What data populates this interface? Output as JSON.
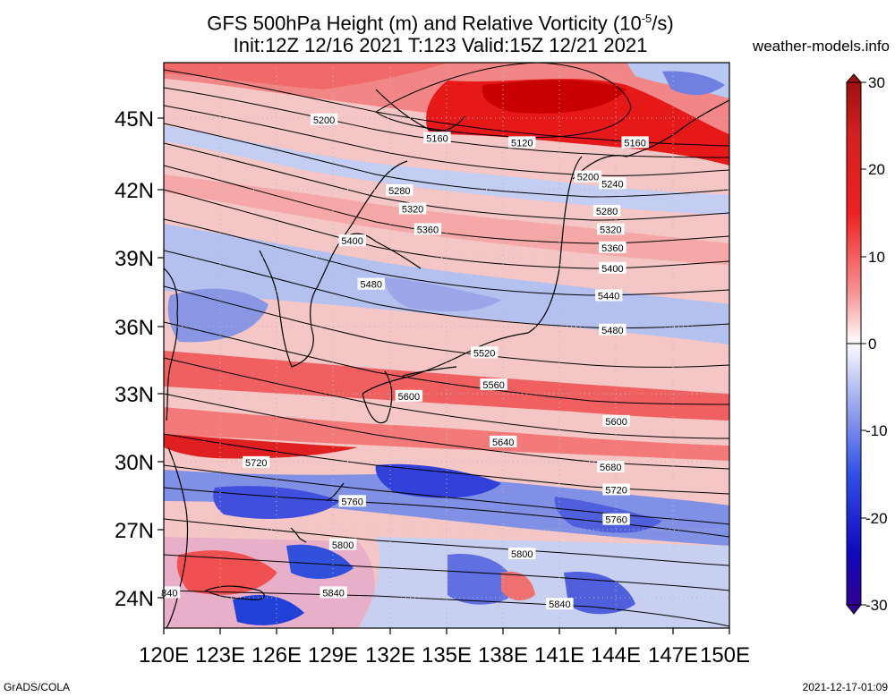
{
  "title_line1": "GFS 500hPa Height (m) and Relative Vorticity (10",
  "title_sup": "-5",
  "title_tail": "/s)",
  "title_line2": "Init:12Z 12/16 2021 T:123 Valid:15Z 12/21 2021",
  "site": "weather-models.info",
  "footer_left": "GrADS/COLA",
  "footer_right": "2021-12-17-01:09",
  "lat_labels": [
    "45N",
    "42N",
    "39N",
    "36N",
    "33N",
    "30N",
    "27N",
    "24N"
  ],
  "lon_labels": [
    "120E",
    "123E",
    "126E",
    "129E",
    "132E",
    "135E",
    "138E",
    "141E",
    "144E",
    "147E",
    "150E"
  ],
  "colorbar_labels": [
    "30",
    "20",
    "10",
    "0",
    "-10",
    "-20",
    "-30"
  ],
  "colors": {
    "strong_pos": "#d40000",
    "pos": "#f06060",
    "weak_pos": "#f8b8b8",
    "neutral": "#ffffff",
    "weak_neg": "#b8c4f0",
    "neg": "#5870e0",
    "strong_neg": "#1010c8",
    "contour": "#000000"
  },
  "contour_labels": [
    {
      "text": "5200",
      "lon": 128.5,
      "lat": 45.0
    },
    {
      "text": "5160",
      "lon": 134.5,
      "lat": 44.2
    },
    {
      "text": "5120",
      "lon": 139.0,
      "lat": 44.0
    },
    {
      "text": "5160",
      "lon": 145.0,
      "lat": 44.0
    },
    {
      "text": "5280",
      "lon": 132.5,
      "lat": 41.9
    },
    {
      "text": "5200",
      "lon": 142.5,
      "lat": 42.5
    },
    {
      "text": "5240",
      "lon": 143.8,
      "lat": 42.2
    },
    {
      "text": "5320",
      "lon": 133.2,
      "lat": 41.1
    },
    {
      "text": "5280",
      "lon": 143.5,
      "lat": 41.0
    },
    {
      "text": "5360",
      "lon": 134.0,
      "lat": 40.2
    },
    {
      "text": "5320",
      "lon": 143.7,
      "lat": 40.2
    },
    {
      "text": "5400",
      "lon": 130.0,
      "lat": 39.7
    },
    {
      "text": "5360",
      "lon": 143.8,
      "lat": 39.4
    },
    {
      "text": "5400",
      "lon": 143.8,
      "lat": 38.5
    },
    {
      "text": "5480",
      "lon": 131.0,
      "lat": 37.8
    },
    {
      "text": "5440",
      "lon": 143.6,
      "lat": 37.3
    },
    {
      "text": "5480",
      "lon": 143.8,
      "lat": 35.8
    },
    {
      "text": "5520",
      "lon": 137.0,
      "lat": 34.8
    },
    {
      "text": "5560",
      "lon": 137.5,
      "lat": 33.4
    },
    {
      "text": "5600",
      "lon": 133.0,
      "lat": 32.9
    },
    {
      "text": "5600",
      "lon": 144.0,
      "lat": 31.8
    },
    {
      "text": "5640",
      "lon": 138.0,
      "lat": 30.9
    },
    {
      "text": "5720",
      "lon": 124.9,
      "lat": 30.0
    },
    {
      "text": "5680",
      "lon": 143.7,
      "lat": 29.8
    },
    {
      "text": "5720",
      "lon": 144.0,
      "lat": 28.8
    },
    {
      "text": "5760",
      "lon": 130.0,
      "lat": 28.3
    },
    {
      "text": "5760",
      "lon": 144.0,
      "lat": 27.5
    },
    {
      "text": "5800",
      "lon": 129.5,
      "lat": 26.4
    },
    {
      "text": "5800",
      "lon": 139.0,
      "lat": 26.0
    },
    {
      "text": "5840",
      "lon": 129.0,
      "lat": 24.3
    },
    {
      "text": "5840",
      "lon": 141.0,
      "lat": 23.8
    },
    {
      "text": "840",
      "lon": 120.3,
      "lat": 24.3
    }
  ]
}
